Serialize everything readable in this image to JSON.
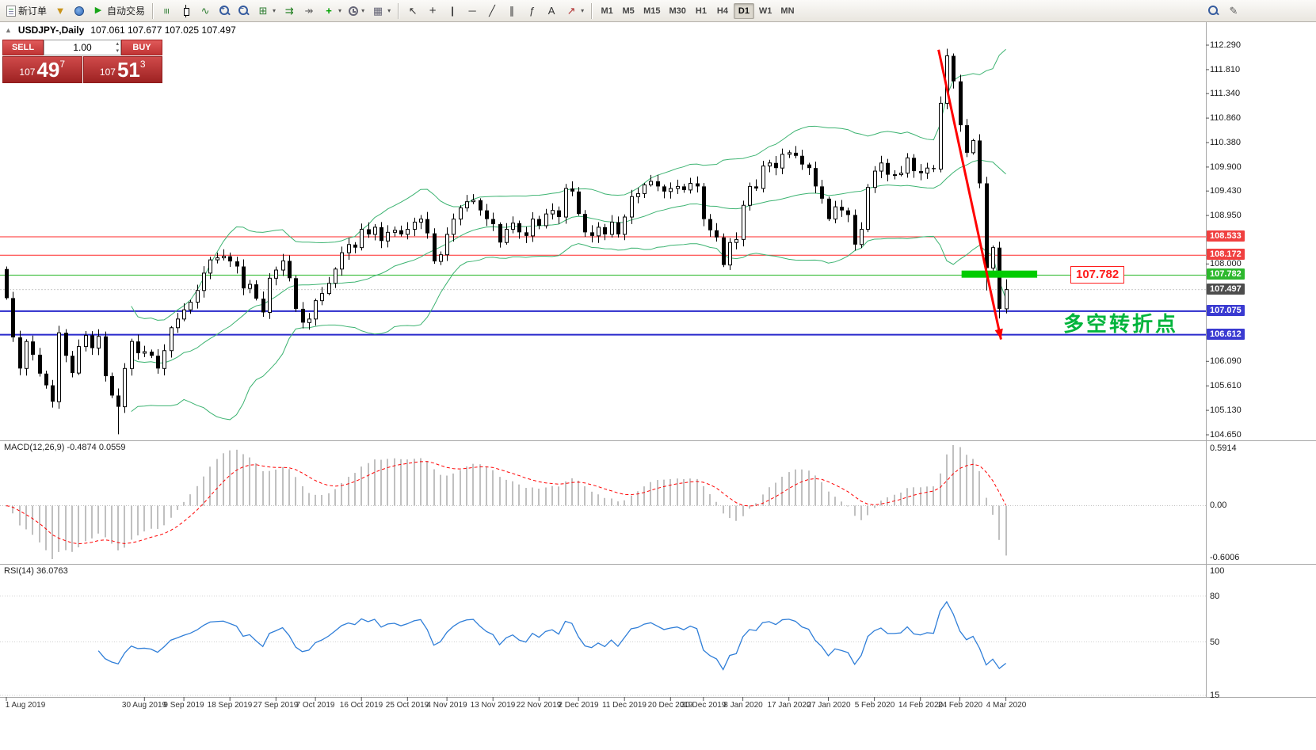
{
  "toolbar": {
    "new_order_label": "新订单",
    "auto_trading_label": "自动交易",
    "timeframes": [
      "M1",
      "M5",
      "M15",
      "M30",
      "H1",
      "H4",
      "D1",
      "W1",
      "MN"
    ],
    "active_timeframe": "D1",
    "icons": {
      "funnel": "▼",
      "play": "▶",
      "bars": "≡",
      "line": "∿",
      "tile": "⊞",
      "autoscroll": "⇉",
      "shift": "↠",
      "plus": "+",
      "template": "▦",
      "cursor": "↖",
      "crosshair": "+",
      "vline": "|",
      "hline": "─",
      "trend": "╱",
      "channel": "∥",
      "fibo": "ƒ",
      "text": "A",
      "arrows": "↗",
      "pencil": "✎",
      "caret": "▾",
      "collapse": "▲",
      "spin_up": "▴",
      "spin_down": "▾"
    }
  },
  "chart": {
    "symbol_title": "USDJPY-,Daily",
    "ohlc_text": "107.061 107.677 107.025 107.497",
    "one_click": {
      "sell_label": "SELL",
      "buy_label": "BUY",
      "volume": "1.00",
      "sell_prefix": "107",
      "sell_big": "49",
      "sell_sup": "7",
      "buy_prefix": "107",
      "buy_big": "51",
      "buy_sup": "3"
    }
  },
  "annotations": {
    "turning_point": {
      "text": "多空转折点",
      "color": "#00b43c",
      "bar_index": 161,
      "price": 106.88
    },
    "price_flag": {
      "text": "107.782",
      "color": "#ff1e1e",
      "bar_index": 162,
      "price": 107.79
    },
    "highlight": {
      "from_bar": 145.5,
      "to_bar": 157,
      "price": 107.8,
      "color": "#00cc00",
      "thickness": 9
    },
    "arrow": {
      "from_bar": 142,
      "from_price": 112.2,
      "to_bar": 151.5,
      "to_price": 106.52,
      "color": "#ff0000",
      "width": 3
    }
  },
  "chart_data": {
    "type": "candlestick",
    "symbol": "USDJPY",
    "timeframe": "Daily",
    "ohlc_display": {
      "open": 107.061,
      "high": 107.677,
      "low": 107.025,
      "close": 107.497
    },
    "first_open": 107.9,
    "closes": [
      107.33,
      106.56,
      105.95,
      106.48,
      106.22,
      105.85,
      105.62,
      105.3,
      106.65,
      106.2,
      105.86,
      106.38,
      106.6,
      106.35,
      106.58,
      105.8,
      105.42,
      105.2,
      105.95,
      106.48,
      106.25,
      106.28,
      106.2,
      105.95,
      106.3,
      106.75,
      106.92,
      107.1,
      107.25,
      107.48,
      107.82,
      108.08,
      108.12,
      108.15,
      108.05,
      107.95,
      107.52,
      107.6,
      107.32,
      107.05,
      107.72,
      107.88,
      108.06,
      107.72,
      107.12,
      106.85,
      106.92,
      107.28,
      107.42,
      107.62,
      107.9,
      108.22,
      108.38,
      108.32,
      108.68,
      108.58,
      108.72,
      108.45,
      108.62,
      108.66,
      108.58,
      108.68,
      108.82,
      108.88,
      108.6,
      108.05,
      108.18,
      108.58,
      108.88,
      109.1,
      109.22,
      109.25,
      109.05,
      108.88,
      108.78,
      108.42,
      108.68,
      108.8,
      108.62,
      108.55,
      108.88,
      108.75,
      108.98,
      109.05,
      108.92,
      109.48,
      109.42,
      108.98,
      108.62,
      108.55,
      108.72,
      108.58,
      108.82,
      108.58,
      108.92,
      109.32,
      109.38,
      109.55,
      109.62,
      109.52,
      109.42,
      109.48,
      109.52,
      109.45,
      109.58,
      109.52,
      108.88,
      108.66,
      108.52,
      107.98,
      108.42,
      108.48,
      109.15,
      109.52,
      109.48,
      109.92,
      109.98,
      109.88,
      110.15,
      110.18,
      110.12,
      109.95,
      109.88,
      109.52,
      109.28,
      108.88,
      109.12,
      109.05,
      108.96,
      108.38,
      108.68,
      109.5,
      109.82,
      109.98,
      109.75,
      109.75,
      109.78,
      110.08,
      109.82,
      109.78,
      109.88,
      109.86,
      111.15,
      112.08,
      111.58,
      110.72,
      110.18,
      110.42,
      109.58,
      107.92,
      108.32,
      107.12,
      107.497
    ],
    "wick_overrides": {
      "0": {
        "high": 107.95
      },
      "17": {
        "low": 104.66
      },
      "143": {
        "high": 112.22
      },
      "149": {
        "low": 107.48
      },
      "151": {
        "low": 106.93
      },
      "152": {
        "low": 107.03,
        "high": 107.7
      }
    },
    "bollinger": {
      "period": 20,
      "deviations": 2,
      "color": "#3cb371"
    },
    "levels": [
      {
        "price": 108.533,
        "color": "#ff2a2a",
        "width": 1
      },
      {
        "price": 108.172,
        "color": "#ff2a2a",
        "width": 1
      },
      {
        "price": 107.782,
        "color": "#2db82d",
        "width": 1
      },
      {
        "price": 107.075,
        "color": "#2929cc",
        "width": 2
      },
      {
        "price": 106.612,
        "color": "#2929cc",
        "width": 2
      }
    ],
    "current_price": {
      "value": 107.497,
      "label": "107.497"
    },
    "y_ticks": [
      112.29,
      111.81,
      111.34,
      110.86,
      110.38,
      109.9,
      109.43,
      108.95,
      108.0,
      106.09,
      105.61,
      105.13,
      104.65
    ],
    "scale_badges": [
      {
        "text": "108.533",
        "price": 108.533,
        "bg": "#f04040"
      },
      {
        "text": "108.172",
        "price": 108.172,
        "bg": "#f04040"
      },
      {
        "text": "107.782",
        "price": 107.782,
        "bg": "#2db82d"
      },
      {
        "text": "107.497",
        "price": 107.497,
        "bg": "#4d4d4d"
      },
      {
        "text": "107.075",
        "price": 107.075,
        "bg": "#3a3ad1"
      },
      {
        "text": "106.612",
        "price": 106.612,
        "bg": "#3a3ad1"
      }
    ],
    "x_labels": [
      {
        "t": "1 Aug 2019",
        "i": 0
      },
      {
        "t": "30 Aug 2019",
        "i": 21
      },
      {
        "t": "9 Sep 2019",
        "i": 27
      },
      {
        "t": "18 Sep 2019",
        "i": 34
      },
      {
        "t": "27 Sep 2019",
        "i": 41
      },
      {
        "t": "7 Oct 2019",
        "i": 47
      },
      {
        "t": "16 Oct 2019",
        "i": 54
      },
      {
        "t": "25 Oct 2019",
        "i": 61
      },
      {
        "t": "4 Nov 2019",
        "i": 67
      },
      {
        "t": "13 Nov 2019",
        "i": 74
      },
      {
        "t": "22 Nov 2019",
        "i": 81
      },
      {
        "t": "2 Dec 2019",
        "i": 87
      },
      {
        "t": "11 Dec 2019",
        "i": 94
      },
      {
        "t": "20 Dec 2019",
        "i": 101
      },
      {
        "t": "30 Dec 2019",
        "i": 106
      },
      {
        "t": "8 Jan 2020",
        "i": 112
      },
      {
        "t": "17 Jan 2020",
        "i": 119
      },
      {
        "t": "27 Jan 2020",
        "i": 125
      },
      {
        "t": "5 Feb 2020",
        "i": 132
      },
      {
        "t": "14 Feb 2020",
        "i": 139
      },
      {
        "t": "24 Feb 2020",
        "i": 145
      },
      {
        "t": "4 Mar 2020",
        "i": 152
      }
    ],
    "indicators": [
      {
        "name": "MACD",
        "text": "MACD(12,26,9) -0.4874 0.0559",
        "params": [
          12,
          26,
          9
        ],
        "value": -0.4874,
        "signal_value": 0.0559,
        "scale": {
          "top": "0.5914",
          "zero": "0.00",
          "bottom": "-0.6006"
        },
        "histogram_color": "#c0c0c0",
        "signal_color": "#ff0000"
      },
      {
        "name": "RSI",
        "text": "RSI(14) 36.0763",
        "params": [
          14
        ],
        "value": 36.0763,
        "scale_ticks": [
          100,
          80,
          50,
          15
        ],
        "line_color": "#2f7ed8"
      }
    ]
  }
}
